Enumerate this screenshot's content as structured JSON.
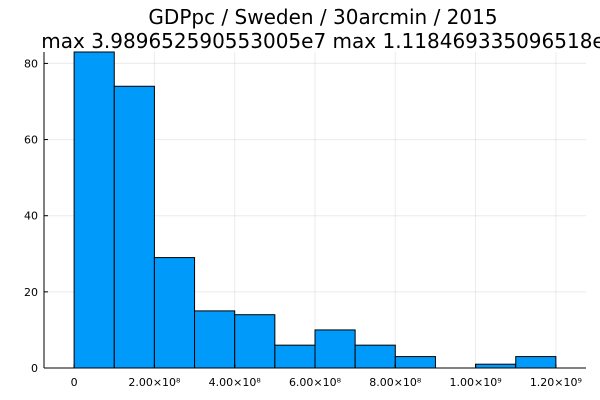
{
  "chart_data": {
    "type": "bar",
    "subtype": "histogram",
    "title": "GDPpc / Sweden / 30arcmin / 2015",
    "subtitle": "max 3.989652590553005e7  max 1.118469335096518e",
    "xlabel": "",
    "ylabel": "",
    "bin_edges": [
      0,
      100000000,
      200000000,
      300000000,
      400000000,
      500000000,
      600000000,
      700000000,
      800000000,
      900000000,
      1000000000,
      1100000000,
      1200000000
    ],
    "values": [
      83,
      74,
      29,
      15,
      14,
      6,
      10,
      6,
      3,
      0,
      1,
      3
    ],
    "xlim": [
      -75000000,
      1275000000
    ],
    "ylim": [
      0,
      83
    ],
    "x_ticks": [
      {
        "value": 0,
        "label": "0"
      },
      {
        "value": 200000000,
        "label": "2.00×10⁸"
      },
      {
        "value": 400000000,
        "label": "4.00×10⁸"
      },
      {
        "value": 600000000,
        "label": "6.00×10⁸"
      },
      {
        "value": 800000000,
        "label": "8.00×10⁸"
      },
      {
        "value": 1000000000,
        "label": "1.00×10⁹"
      },
      {
        "value": 1200000000,
        "label": "1.20×10⁹"
      }
    ],
    "y_ticks": [
      {
        "value": 0,
        "label": "0"
      },
      {
        "value": 20,
        "label": "20"
      },
      {
        "value": 40,
        "label": "40"
      },
      {
        "value": 60,
        "label": "60"
      },
      {
        "value": 80,
        "label": "80"
      }
    ],
    "grid": true,
    "legend": "none",
    "bar_color": "#009AFA",
    "edge_color": "#000000"
  }
}
